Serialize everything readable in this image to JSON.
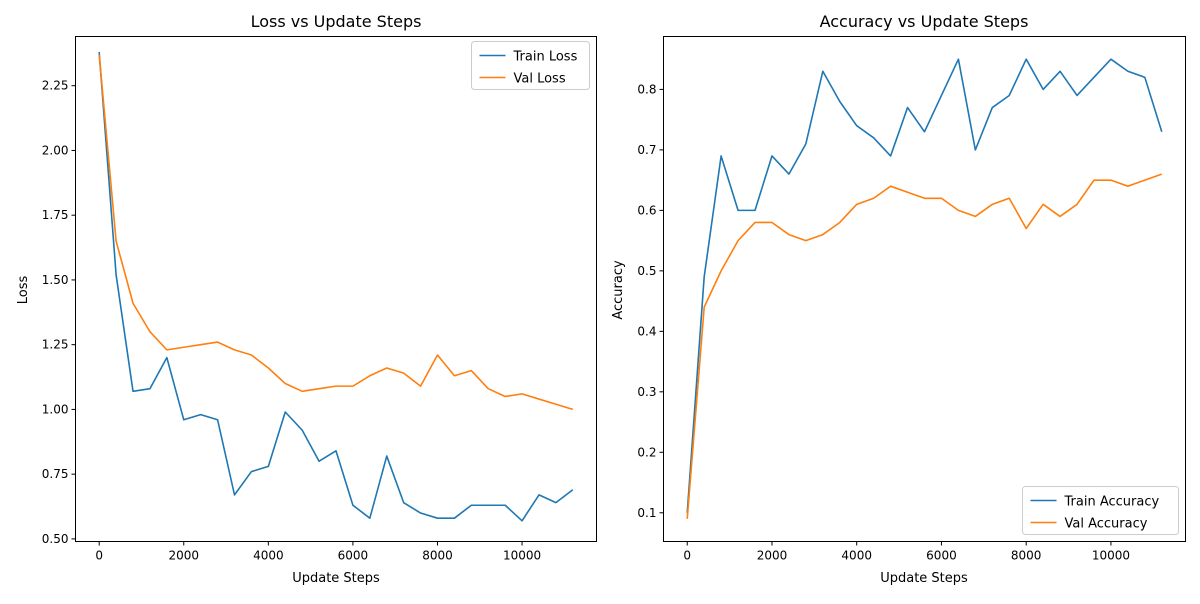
{
  "chart_data": [
    {
      "type": "line",
      "title": "Loss vs Update Steps",
      "xlabel": "Update Steps",
      "ylabel": "Loss",
      "xlim": [
        -560,
        11760
      ],
      "ylim": [
        0.49,
        2.44
      ],
      "xticks": [
        0,
        2000,
        4000,
        6000,
        8000,
        10000
      ],
      "xtick_labels": [
        "0",
        "2000",
        "4000",
        "6000",
        "8000",
        "10000"
      ],
      "yticks": [
        0.5,
        0.75,
        1.0,
        1.25,
        1.5,
        1.75,
        2.0,
        2.25
      ],
      "ytick_labels": [
        "0.50",
        "0.75",
        "1.00",
        "1.25",
        "1.50",
        "1.75",
        "2.00",
        "2.25"
      ],
      "grid": false,
      "legend_position": "top-right",
      "x": [
        0,
        400,
        800,
        1200,
        1600,
        2000,
        2400,
        2800,
        3200,
        3600,
        4000,
        4400,
        4800,
        5200,
        5600,
        6000,
        6400,
        6800,
        7200,
        7600,
        8000,
        8400,
        8800,
        9200,
        9600,
        10000,
        10400,
        10800,
        11200
      ],
      "series": [
        {
          "name": "Train Loss",
          "color": "#1f77b4",
          "values": [
            2.38,
            1.52,
            1.07,
            1.08,
            1.2,
            0.96,
            0.98,
            0.96,
            0.67,
            0.76,
            0.78,
            0.99,
            0.92,
            0.8,
            0.84,
            0.63,
            0.58,
            0.82,
            0.64,
            0.6,
            0.58,
            0.58,
            0.63,
            0.63,
            0.63,
            0.57,
            0.67,
            0.64,
            0.69
          ]
        },
        {
          "name": "Val Loss",
          "color": "#ff7f0e",
          "values": [
            2.37,
            1.65,
            1.41,
            1.3,
            1.23,
            1.24,
            1.25,
            1.26,
            1.23,
            1.21,
            1.16,
            1.1,
            1.07,
            1.08,
            1.09,
            1.09,
            1.13,
            1.16,
            1.14,
            1.09,
            1.21,
            1.13,
            1.15,
            1.08,
            1.05,
            1.06,
            1.04,
            1.02,
            1.0
          ]
        }
      ]
    },
    {
      "type": "line",
      "title": "Accuracy vs Update Steps",
      "xlabel": "Update Steps",
      "ylabel": "Accuracy",
      "xlim": [
        -560,
        11760
      ],
      "ylim": [
        0.0525,
        0.8875
      ],
      "xticks": [
        0,
        2000,
        4000,
        6000,
        8000,
        10000
      ],
      "xtick_labels": [
        "0",
        "2000",
        "4000",
        "6000",
        "8000",
        "10000"
      ],
      "yticks": [
        0.1,
        0.2,
        0.3,
        0.4,
        0.5,
        0.6,
        0.7,
        0.8
      ],
      "ytick_labels": [
        "0.1",
        "0.2",
        "0.3",
        "0.4",
        "0.5",
        "0.6",
        "0.7",
        "0.8"
      ],
      "grid": false,
      "legend_position": "bottom-right",
      "x": [
        0,
        400,
        800,
        1200,
        1600,
        2000,
        2400,
        2800,
        3200,
        3600,
        4000,
        4400,
        4800,
        5200,
        5600,
        6000,
        6400,
        6800,
        7200,
        7600,
        8000,
        8400,
        8800,
        9200,
        9600,
        10000,
        10400,
        10800,
        11200
      ],
      "series": [
        {
          "name": "Train Accuracy",
          "color": "#1f77b4",
          "values": [
            0.1,
            0.49,
            0.69,
            0.6,
            0.6,
            0.69,
            0.66,
            0.71,
            0.83,
            0.78,
            0.74,
            0.72,
            0.69,
            0.77,
            0.73,
            0.79,
            0.85,
            0.7,
            0.77,
            0.79,
            0.85,
            0.8,
            0.83,
            0.79,
            0.82,
            0.85,
            0.83,
            0.82,
            0.73
          ]
        },
        {
          "name": "Val Accuracy",
          "color": "#ff7f0e",
          "values": [
            0.09,
            0.44,
            0.5,
            0.55,
            0.58,
            0.58,
            0.56,
            0.55,
            0.56,
            0.58,
            0.61,
            0.62,
            0.64,
            0.63,
            0.62,
            0.62,
            0.6,
            0.59,
            0.61,
            0.62,
            0.57,
            0.61,
            0.59,
            0.61,
            0.65,
            0.65,
            0.64,
            0.65,
            0.66
          ]
        }
      ]
    }
  ]
}
